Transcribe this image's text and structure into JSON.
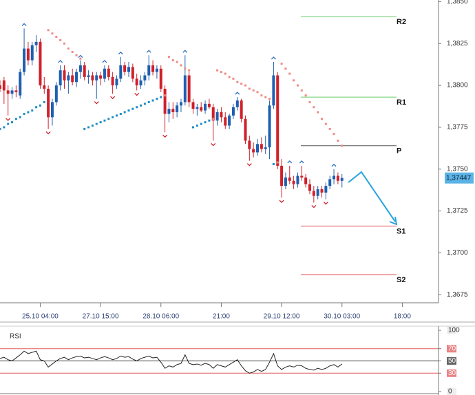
{
  "chart_data": {
    "type": "candlestick",
    "x": [
      0,
      1,
      2,
      3,
      4,
      5,
      6,
      7,
      8,
      9,
      10,
      11,
      12,
      13,
      14,
      15,
      16,
      17,
      18,
      19,
      20,
      21,
      22,
      23,
      24,
      25,
      26,
      27,
      28,
      29,
      30,
      31,
      32,
      33,
      34,
      35,
      36,
      37,
      38,
      39,
      40,
      41,
      42,
      43,
      44,
      45,
      46,
      47,
      48,
      49,
      50,
      51,
      52,
      53,
      54,
      55,
      56,
      57,
      58,
      59,
      60,
      61,
      62,
      63,
      64,
      65,
      66,
      67,
      68,
      69,
      70,
      71,
      72,
      73,
      74,
      75,
      76,
      77,
      78,
      79,
      80,
      81,
      82,
      83,
      84,
      85
    ],
    "open": [
      1.38,
      1.3803,
      1.3797,
      1.3795,
      1.3797,
      1.3794,
      1.3808,
      1.3822,
      1.3815,
      1.3824,
      1.3826,
      1.38,
      1.3798,
      1.3781,
      1.379,
      1.38,
      1.3809,
      1.3803,
      1.3806,
      1.3802,
      1.3808,
      1.3812,
      1.3805,
      1.3806,
      1.3803,
      1.3806,
      1.3804,
      1.381,
      1.3805,
      1.38,
      1.3804,
      1.3812,
      1.3808,
      1.3811,
      1.3804,
      1.38,
      1.3803,
      1.3806,
      1.3812,
      1.3808,
      1.381,
      1.3798,
      1.3783,
      1.3786,
      1.3784,
      1.3788,
      1.379,
      1.3806,
      1.379,
      1.3786,
      1.3787,
      1.3785,
      1.3789,
      1.3787,
      1.3779,
      1.3784,
      1.3781,
      1.3776,
      1.3782,
      1.3787,
      1.3791,
      1.378,
      1.3767,
      1.3762,
      1.376,
      1.3765,
      1.3762,
      1.3763,
      1.3788,
      1.3806,
      1.3752,
      1.374,
      1.3745,
      1.3743,
      1.3741,
      1.3746,
      1.3745,
      1.3741,
      1.3737,
      1.3734,
      1.3738,
      1.3736,
      1.374,
      1.3744,
      1.3746,
      1.3743
    ],
    "high": [
      1.3803,
      1.3805,
      1.38,
      1.3799,
      1.38,
      1.381,
      1.3834,
      1.3826,
      1.3826,
      1.383,
      1.3828,
      1.3805,
      1.38,
      1.3792,
      1.3802,
      1.3812,
      1.3812,
      1.3808,
      1.381,
      1.381,
      1.3815,
      1.3814,
      1.3809,
      1.3808,
      1.3808,
      1.3808,
      1.3812,
      1.3812,
      1.3808,
      1.3806,
      1.3817,
      1.3814,
      1.3814,
      1.3813,
      1.3807,
      1.3806,
      1.3808,
      1.3818,
      1.3815,
      1.3812,
      1.3812,
      1.38,
      1.379,
      1.379,
      1.379,
      1.3792,
      1.3818,
      1.3808,
      1.3792,
      1.3789,
      1.379,
      1.3791,
      1.3792,
      1.3789,
      1.3786,
      1.3787,
      1.3784,
      1.3783,
      1.3789,
      1.3793,
      1.3792,
      1.3782,
      1.377,
      1.3766,
      1.3768,
      1.3769,
      1.377,
      1.3791,
      1.3814,
      1.3808,
      1.3756,
      1.3748,
      1.3752,
      1.3746,
      1.3748,
      1.3752,
      1.3747,
      1.3744,
      1.374,
      1.374,
      1.374,
      1.3742,
      1.3746,
      1.375,
      1.3748,
      1.3747
    ],
    "low": [
      1.3796,
      1.3789,
      1.3782,
      1.3792,
      1.3793,
      1.3792,
      1.3806,
      1.3812,
      1.3812,
      1.382,
      1.3798,
      1.3795,
      1.3774,
      1.3776,
      1.3788,
      1.3797,
      1.3798,
      1.3795,
      1.38,
      1.3799,
      1.3804,
      1.3803,
      1.3801,
      1.38,
      1.3792,
      1.38,
      1.3802,
      1.3803,
      1.3795,
      1.3798,
      1.3802,
      1.3806,
      1.3805,
      1.3802,
      1.3797,
      1.3798,
      1.38,
      1.3803,
      1.3806,
      1.3804,
      1.3796,
      1.3772,
      1.3778,
      1.378,
      1.3781,
      1.3784,
      1.3788,
      1.3787,
      1.3783,
      1.3782,
      1.3784,
      1.3783,
      1.3786,
      1.3767,
      1.3776,
      1.3778,
      1.3774,
      1.3774,
      1.378,
      1.3785,
      1.3778,
      1.3765,
      1.3755,
      1.3757,
      1.3758,
      1.376,
      1.3759,
      1.3756,
      1.3786,
      1.375,
      1.3733,
      1.3738,
      1.3741,
      1.3738,
      1.3739,
      1.3743,
      1.3739,
      1.3735,
      1.373,
      1.3732,
      1.3733,
      1.3732,
      1.3738,
      1.3741,
      1.3741,
      1.3739
    ],
    "close": [
      1.3798,
      1.3797,
      1.3795,
      1.3797,
      1.3796,
      1.3808,
      1.3822,
      1.3815,
      1.3824,
      1.3826,
      1.38,
      1.3798,
      1.3781,
      1.379,
      1.38,
      1.3809,
      1.3803,
      1.3806,
      1.3802,
      1.3808,
      1.3812,
      1.3805,
      1.3806,
      1.3803,
      1.3806,
      1.3804,
      1.381,
      1.3805,
      1.38,
      1.3804,
      1.3812,
      1.3808,
      1.3811,
      1.3804,
      1.38,
      1.3803,
      1.3806,
      1.3812,
      1.3808,
      1.381,
      1.3798,
      1.3783,
      1.3786,
      1.3784,
      1.3788,
      1.379,
      1.3806,
      1.379,
      1.3786,
      1.3787,
      1.3785,
      1.3789,
      1.3787,
      1.3779,
      1.3784,
      1.3781,
      1.3776,
      1.3782,
      1.3787,
      1.3791,
      1.378,
      1.3767,
      1.3762,
      1.376,
      1.3765,
      1.3762,
      1.3763,
      1.3788,
      1.3806,
      1.3752,
      1.374,
      1.3745,
      1.3743,
      1.3741,
      1.3746,
      1.3745,
      1.3741,
      1.3737,
      1.3734,
      1.3738,
      1.3736,
      1.374,
      1.3744,
      1.3746,
      1.3743,
      1.37447
    ],
    "up_color": "#1f5fb0",
    "down_color": "#d0202a",
    "xlim": [
      0,
      109
    ],
    "xticks": [
      {
        "value": 10,
        "label": "25.10 04:00"
      },
      {
        "value": 25,
        "label": "27.10 15:00"
      },
      {
        "value": 40,
        "label": "28.10 06:00"
      },
      {
        "value": 55,
        "label": "21:00"
      },
      {
        "value": 70,
        "label": "29.10 12:00"
      },
      {
        "value": 85,
        "label": "30.10 03:00"
      },
      {
        "value": 100,
        "label": "18:00"
      }
    ],
    "ylim": [
      1.3671,
      1.3851
    ],
    "yticks": [
      {
        "value": 1.385,
        "label": "1,3850"
      },
      {
        "value": 1.3825,
        "label": "1,3825"
      },
      {
        "value": 1.38,
        "label": "1,3800"
      },
      {
        "value": 1.3775,
        "label": "1,3775"
      },
      {
        "value": 1.375,
        "label": "1,3750"
      },
      {
        "value": 1.3725,
        "label": "1,3725"
      },
      {
        "value": 1.37,
        "label": "1,3700"
      },
      {
        "value": 1.3675,
        "label": "1,3675"
      }
    ],
    "sar": {
      "values": [
        1.3774,
        1.3775,
        1.3777,
        1.3778,
        1.378,
        1.3781,
        1.3783,
        1.3784,
        1.3785,
        1.3787,
        1.3788,
        1.379,
        1.3833,
        1.3831,
        1.3829,
        1.3827,
        1.3825,
        1.3822,
        1.382,
        1.3818,
        1.3816,
        1.3774,
        1.3775,
        1.3776,
        1.3777,
        1.3778,
        1.3779,
        1.378,
        1.3781,
        1.3782,
        1.3783,
        1.3784,
        1.3785,
        1.3786,
        1.3787,
        1.3788,
        1.3789,
        1.379,
        1.3791,
        1.3792,
        1.3793,
        1.3794,
        1.3817,
        1.3815,
        1.3814,
        1.3812,
        1.381,
        1.3809,
        1.3775,
        1.3776,
        1.3777,
        1.3778,
        1.3779,
        1.378,
        1.3809,
        1.3808,
        1.3807,
        1.3805,
        1.3804,
        1.3802,
        1.3801,
        1.38,
        1.3798,
        1.3797,
        1.3796,
        1.3794,
        1.3793,
        1.3792,
        1.3753,
        1.3754,
        1.3813,
        1.381,
        1.3807,
        1.3803,
        1.38,
        1.3797,
        1.3794,
        1.379,
        1.3787,
        1.3784,
        1.378,
        1.3777,
        1.3774,
        1.3771,
        1.3767,
        1.3764
      ],
      "above_color": "#f08a84",
      "below_color": "#1e8cc4"
    },
    "fractals_up": [
      6,
      15,
      20,
      26,
      30,
      37,
      46,
      59,
      68,
      72,
      75,
      83
    ],
    "fractals_down": [
      2,
      12,
      24,
      28,
      34,
      41,
      53,
      62,
      70,
      78,
      81
    ],
    "fractal_up_color": "#2a6fc0",
    "fractal_down_color": "#d0202a",
    "levels": [
      {
        "label": "R2",
        "value": 1.3841,
        "color": "#66cc66"
      },
      {
        "label": "R1",
        "value": 1.3793,
        "color": "#66cc66"
      },
      {
        "label": "P",
        "value": 1.3764,
        "color": "#555555"
      },
      {
        "label": "S1",
        "value": 1.3716,
        "color": "#e04040"
      },
      {
        "label": "S2",
        "value": 1.3687,
        "color": "#e04040"
      }
    ],
    "last_price": {
      "value": 1.37447,
      "label": "1,37447",
      "color": "#5cb3e6"
    },
    "rsi": {
      "title": "RSI",
      "values": [
        54,
        56,
        52,
        50,
        55,
        60,
        66,
        62,
        64,
        66,
        52,
        50,
        40,
        45,
        50,
        54,
        56,
        52,
        55,
        57,
        58,
        55,
        56,
        54,
        52,
        55,
        57,
        55,
        52,
        54,
        58,
        56,
        57,
        53,
        50,
        54,
        56,
        58,
        55,
        56,
        48,
        38,
        42,
        40,
        44,
        46,
        60,
        46,
        44,
        45,
        43,
        46,
        44,
        38,
        44,
        42,
        40,
        44,
        48,
        52,
        42,
        34,
        30,
        32,
        36,
        33,
        36,
        48,
        62,
        42,
        36,
        40,
        42,
        40,
        43,
        42,
        38,
        36,
        35,
        38,
        36,
        38,
        42,
        44,
        40,
        45
      ],
      "color": "#222222",
      "ylim": [
        0,
        100
      ],
      "yticks": [
        100,
        70,
        50,
        30,
        0
      ],
      "levels": [
        70,
        50,
        30
      ],
      "level_colors": [
        "#e05a5a",
        "#333333",
        "#e05a5a"
      ]
    }
  }
}
